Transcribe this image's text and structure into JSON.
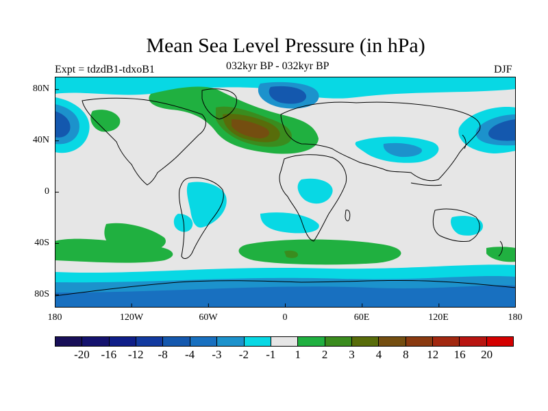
{
  "header": {
    "title": "Mean Sea Level Pressure (in hPa)",
    "experiment": "Expt = tdzdB1-tdxoB1",
    "period": "032kyr BP - 032kyr BP",
    "season": "DJF"
  },
  "axes": {
    "y_labels": [
      "80N",
      "40N",
      "0",
      "40S",
      "80S"
    ],
    "x_labels": [
      "180",
      "120W",
      "60W",
      "0",
      "60E",
      "120E",
      "180"
    ]
  },
  "colorbar": {
    "colors": [
      "#180f58",
      "#14126e",
      "#0f1e88",
      "#123aa0",
      "#1458ae",
      "#1870c0",
      "#1c92cc",
      "#08d8e4",
      "#e6e6e6",
      "#20b040",
      "#3a8c1e",
      "#586c0a",
      "#744e10",
      "#8a3a10",
      "#a22810",
      "#b81410",
      "#d40000"
    ],
    "labels": [
      "-20",
      "-16",
      "-12",
      "-8",
      "-4",
      "-3",
      "-2",
      "-1",
      "1",
      "2",
      "3",
      "4",
      "8",
      "12",
      "16",
      "20"
    ]
  }
}
